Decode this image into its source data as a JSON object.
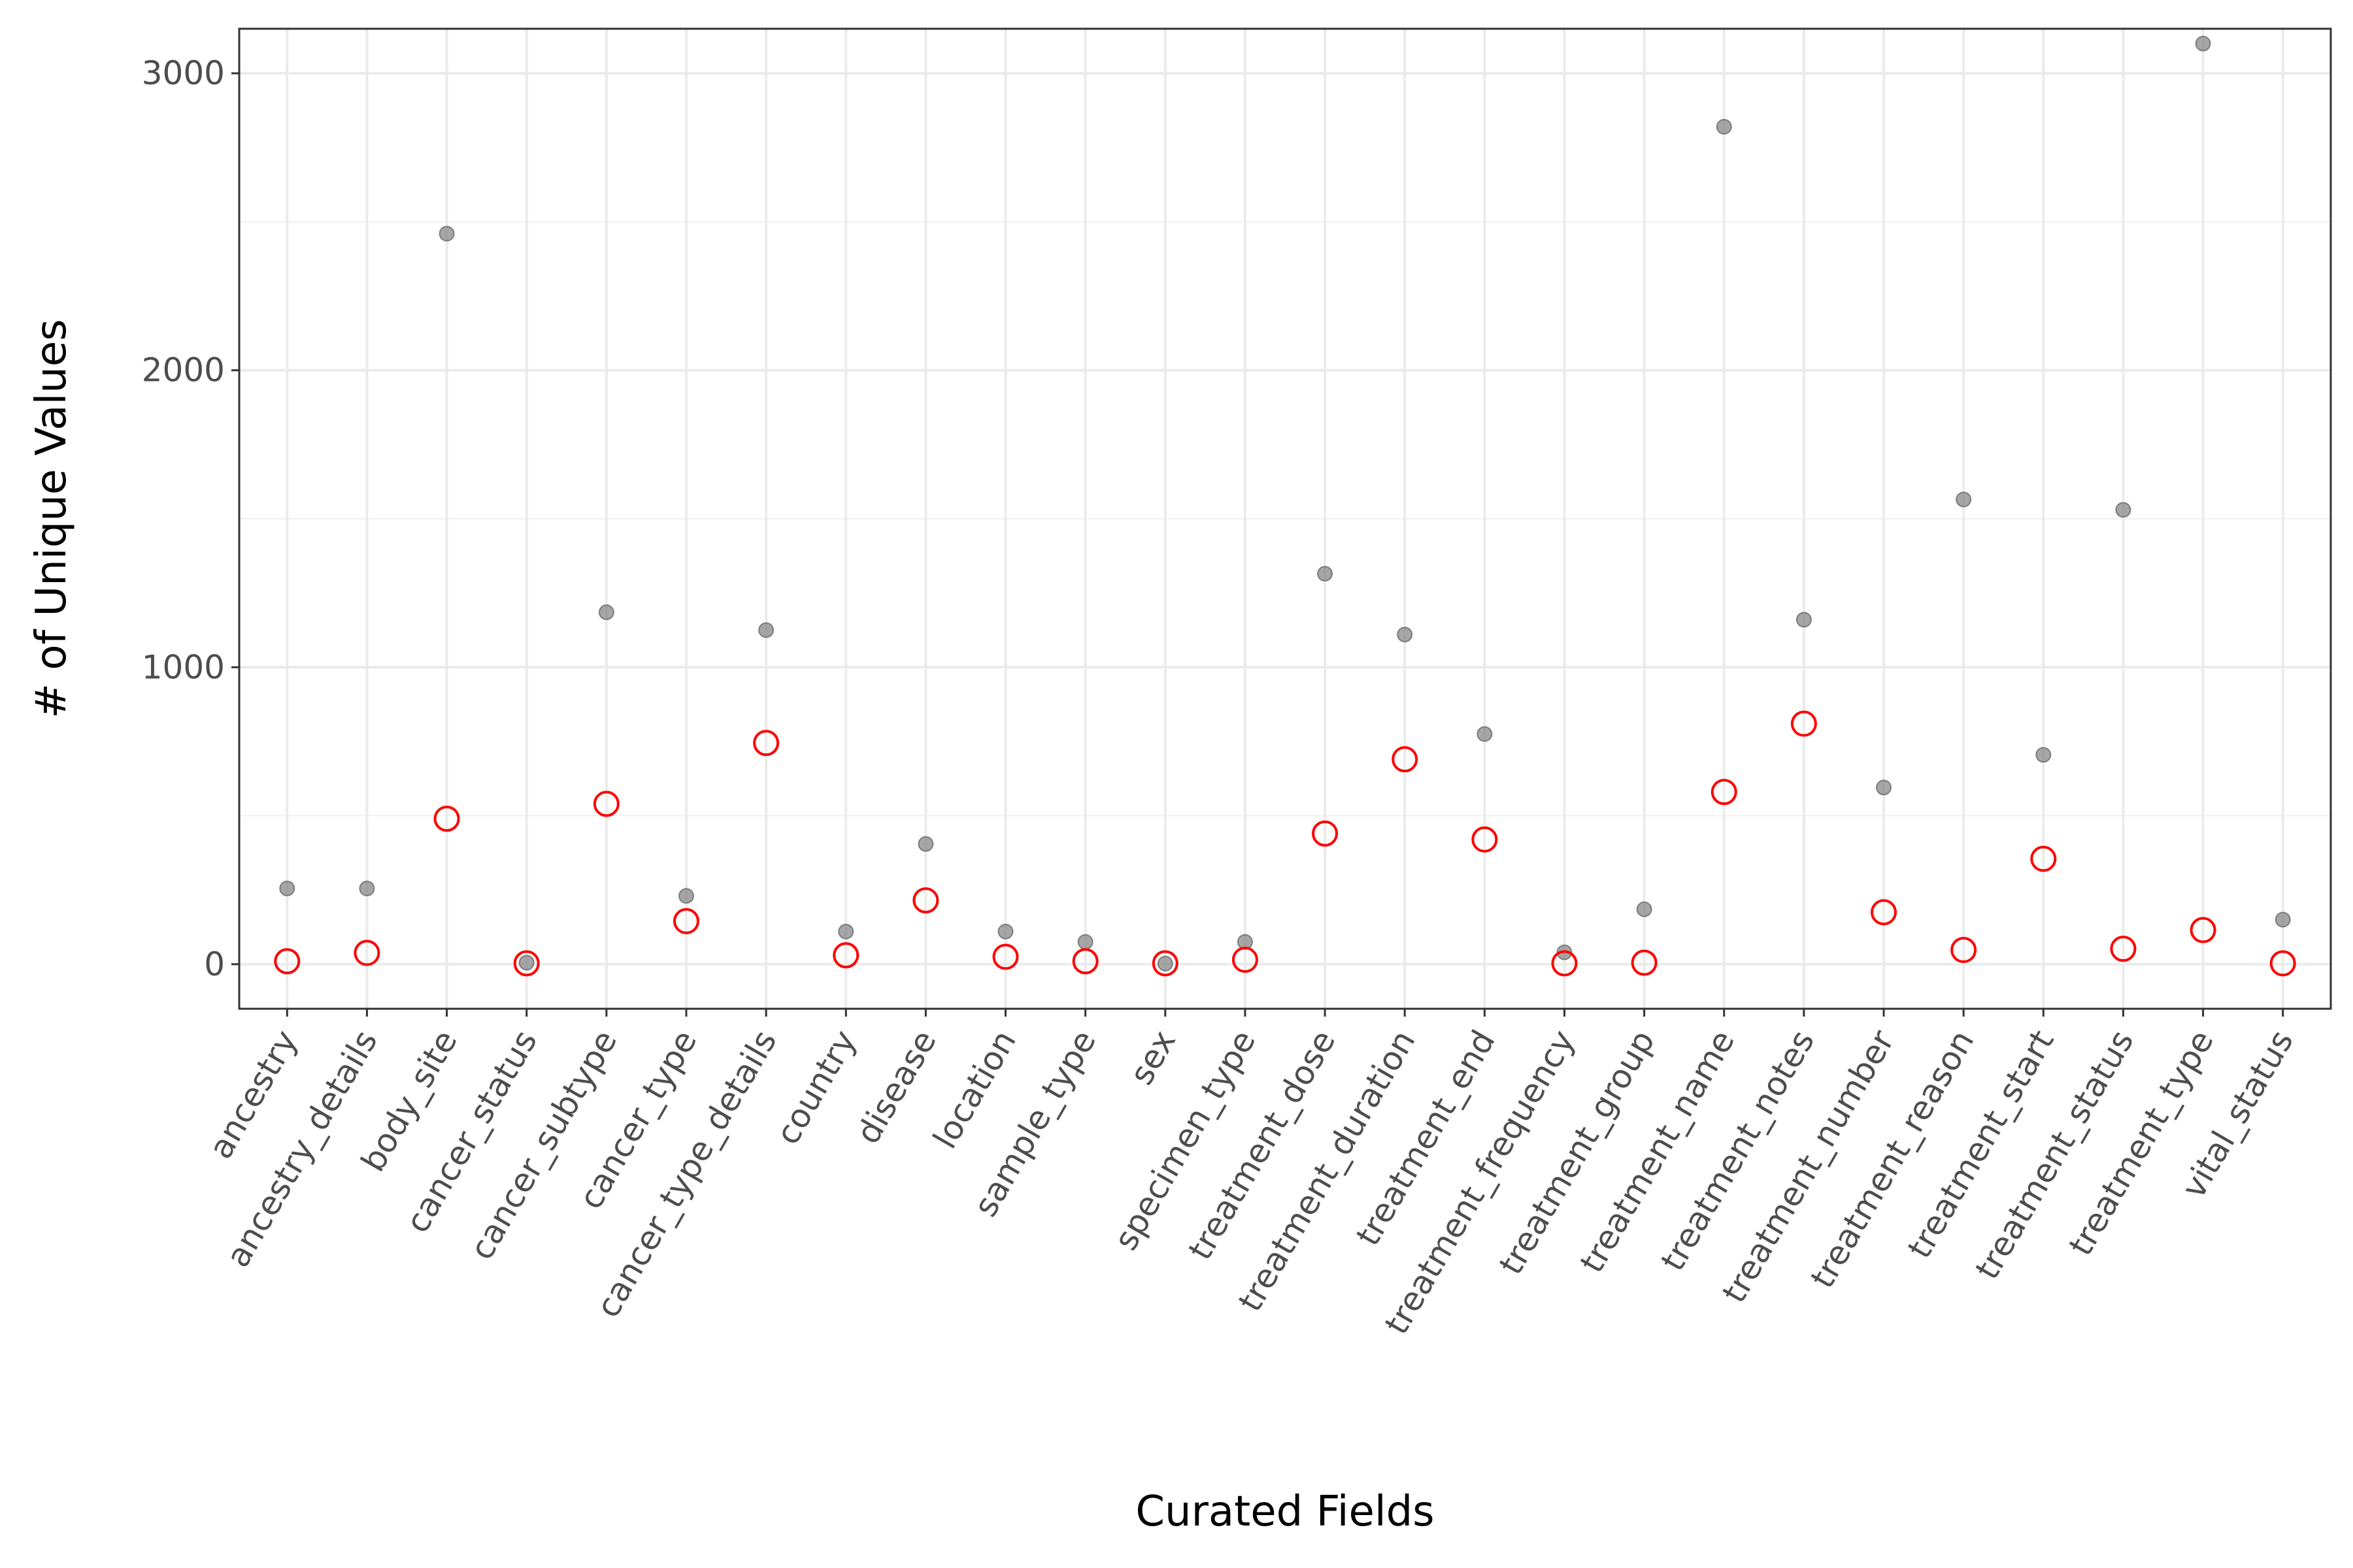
{
  "chart_data": {
    "type": "scatter",
    "title": "",
    "xlabel": "Curated Fields",
    "ylabel": "# of Unique Values",
    "ylim": [
      -150,
      3150
    ],
    "yticks": [
      0,
      1000,
      2000,
      3000
    ],
    "grid": true,
    "legend": "none",
    "categories": [
      "ancestry",
      "ancestry_details",
      "body_site",
      "cancer_status",
      "cancer_subtype",
      "cancer_type",
      "cancer_type_details",
      "country",
      "disease",
      "location",
      "sample_type",
      "sex",
      "specimen_type",
      "treatment_dose",
      "treatment_duration",
      "treatment_end",
      "treatment_frequency",
      "treatment_group",
      "treatment_name",
      "treatment_notes",
      "treatment_number",
      "treatment_reason",
      "treatment_start",
      "treatment_status",
      "treatment_type",
      "vital_status"
    ],
    "series": [
      {
        "color": "#808080",
        "marker": "filled-dot",
        "values": [
          255,
          255,
          2460,
          5,
          1185,
          230,
          1125,
          110,
          405,
          110,
          75,
          2,
          75,
          1315,
          1110,
          775,
          40,
          185,
          2820,
          1160,
          595,
          1565,
          705,
          1530,
          3100,
          150
        ]
      },
      {
        "color": "#ff0000",
        "marker": "open-circle",
        "values": [
          10,
          38,
          490,
          3,
          540,
          145,
          745,
          30,
          215,
          25,
          10,
          3,
          15,
          440,
          690,
          420,
          3,
          5,
          580,
          810,
          175,
          48,
          355,
          52,
          115,
          3
        ]
      }
    ]
  }
}
